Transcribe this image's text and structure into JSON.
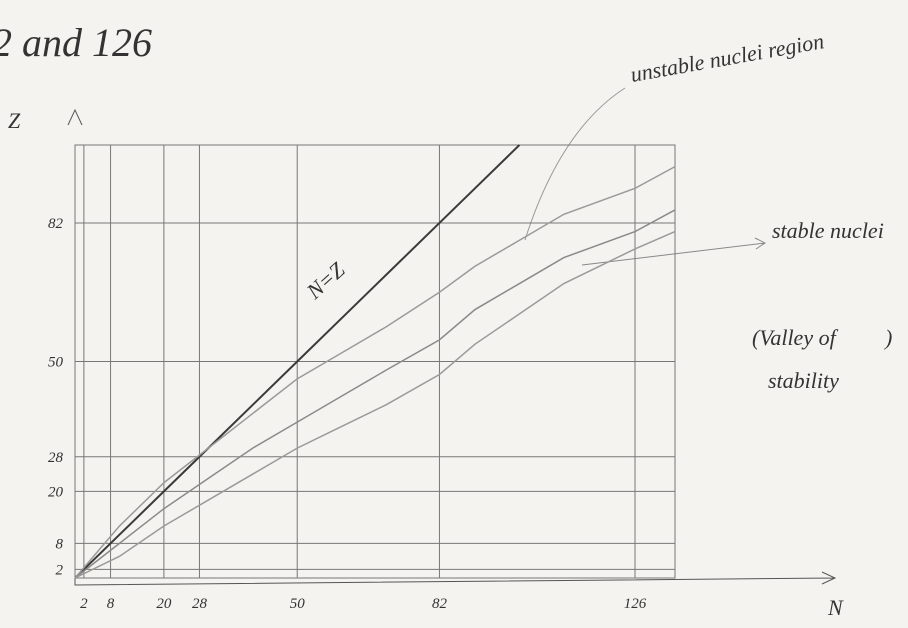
{
  "chart_data": {
    "type": "line",
    "title": "2 and 126",
    "x_label": "N",
    "y_label": "Z",
    "annotations": [
      "N=Z",
      "unstable nuclei region",
      "stable nuclei",
      "(Valley of",
      ")",
      "stability"
    ],
    "x": [
      0,
      10,
      20,
      30,
      40,
      50,
      60,
      70,
      82,
      90,
      100,
      110,
      126,
      135
    ],
    "series": [
      {
        "color": "#3a3a3a",
        "values": [
          0,
          10,
          20,
          30,
          40,
          50,
          60,
          70,
          82,
          90,
          100,
          null,
          null,
          null
        ]
      },
      {
        "color": "#9a9a9a",
        "values": [
          0,
          12,
          22,
          30,
          38,
          46,
          52,
          58,
          66,
          72,
          78,
          84,
          90,
          95
        ]
      },
      {
        "color": "#8a8a8a",
        "values": [
          0,
          8,
          16,
          23,
          30,
          36,
          42,
          48,
          55,
          62,
          68,
          74,
          80,
          85
        ]
      },
      {
        "color": "#9a9a9a",
        "values": [
          0,
          5,
          12,
          18,
          24,
          30,
          35,
          40,
          47,
          54,
          61,
          68,
          76,
          80
        ]
      }
    ],
    "xlim": [
      0,
      135
    ],
    "ylim": [
      0,
      100
    ],
    "xticks": [
      2,
      8,
      20,
      28,
      50,
      82,
      126
    ],
    "yticks": [
      2,
      8,
      20,
      28,
      50,
      82
    ],
    "grid": true
  }
}
